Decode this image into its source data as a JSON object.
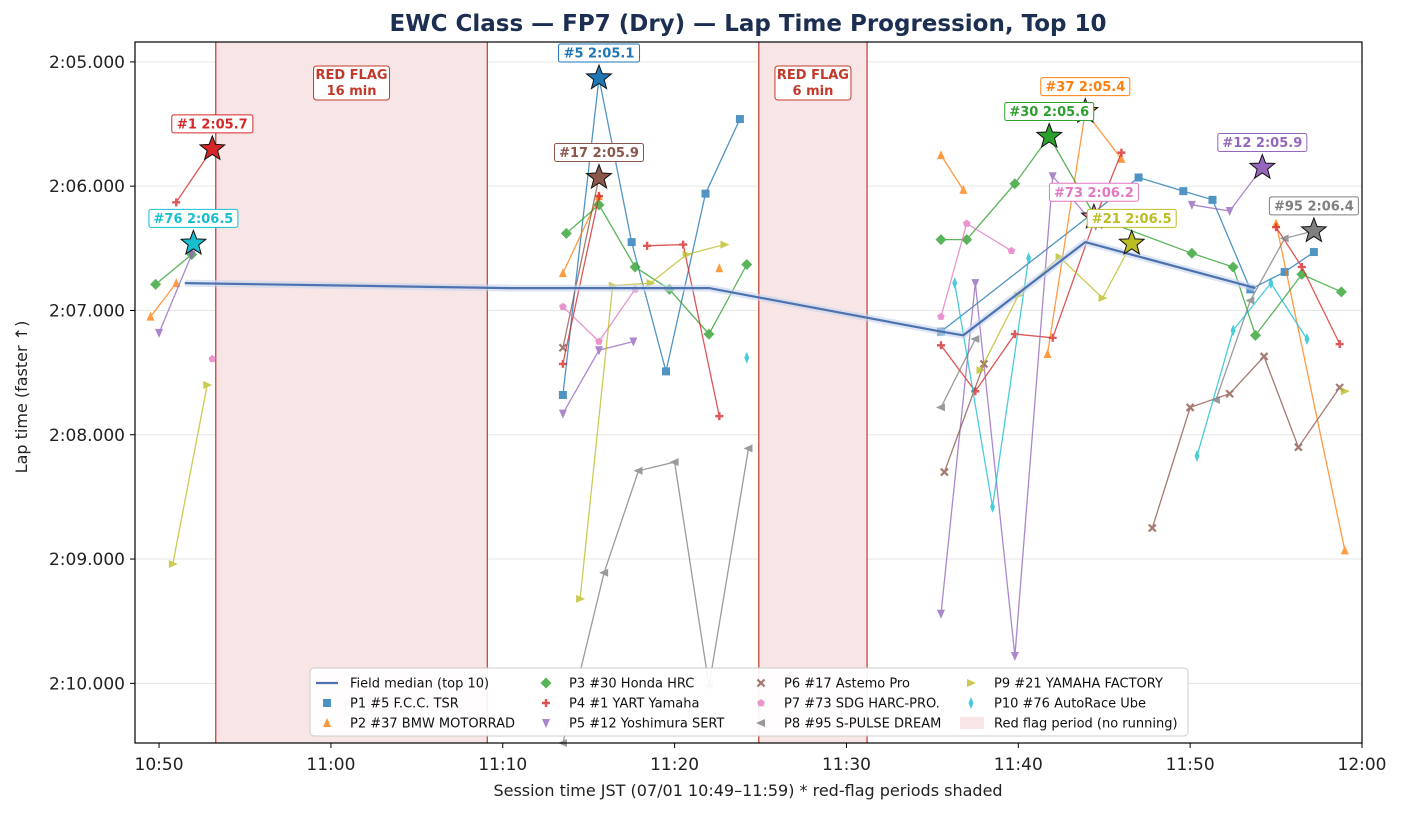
{
  "chart_data": {
    "type": "line",
    "title": "EWC Class — FP7 (Dry) — Lap Time Progression, Top 10",
    "xlabel": "Session time JST (07/01 10:49–11:59)   * red-flag periods shaded",
    "ylabel": "Lap time (faster ↑)",
    "xlim": [
      "10:48.6",
      "12:00"
    ],
    "ylim": [
      "2:04.840",
      "2:10.480"
    ],
    "y_inverted": true,
    "x_ticks": [
      "10:50",
      "11:00",
      "11:10",
      "11:20",
      "11:30",
      "11:40",
      "11:50",
      "12:00"
    ],
    "y_ticks": [
      "2:05.000",
      "2:06.000",
      "2:07.000",
      "2:08.000",
      "2:09.000",
      "2:10.000"
    ],
    "grid": "horizontal",
    "legend_position": "bottom-center",
    "red_flags": [
      {
        "label": "RED FLAG",
        "duration": "16 min",
        "start": "10:53.3",
        "end": "11:09.1"
      },
      {
        "label": "RED FLAG",
        "duration": "6 min",
        "start": "11:24.9",
        "end": "11:31.2"
      }
    ],
    "red_flag_legend": "Red flag period (no running)",
    "median": {
      "name": "Field median (top 10)",
      "color": "#4c72b0",
      "points": [
        [
          "10:51.5",
          "2:06.78"
        ],
        [
          "11:10.4",
          "2:06.82"
        ],
        [
          "11:22.0",
          "2:06.82"
        ],
        [
          "11:35.5",
          "2:07.17"
        ],
        [
          "11:36.8",
          "2:07.20"
        ],
        [
          "11:43.9",
          "2:06.45"
        ],
        [
          "11:53.8",
          "2:06.82"
        ]
      ]
    },
    "series": [
      {
        "name": "P1 #5 F.C.C. TSR",
        "color": "#1f77b4",
        "marker": "square",
        "segments": [
          [
            [
              "11:13.5",
              "2:07.68"
            ],
            [
              "11:15.6",
              "2:05.13"
            ],
            [
              "11:17.5",
              "2:06.45"
            ],
            [
              "11:19.5",
              "2:07.49"
            ],
            [
              "11:21.8",
              "2:06.06"
            ],
            [
              "11:23.8",
              "2:05.46"
            ]
          ],
          [
            [
              "11:35.5",
              "2:07.17"
            ],
            [
              "11:47.0",
              "2:05.93"
            ],
            [
              "11:49.6",
              "2:06.04"
            ],
            [
              "11:51.3",
              "2:06.11"
            ],
            [
              "11:53.5",
              "2:06.83"
            ],
            [
              "11:55.5",
              "2:06.69"
            ],
            [
              "11:57.2",
              "2:06.53"
            ]
          ]
        ]
      },
      {
        "name": "P2 #37 BMW MOTORRAD",
        "color": "#ff7f0e",
        "marker": "triangle-up",
        "segments": [
          [
            [
              "10:49.5",
              "2:07.05"
            ],
            [
              "10:51.0",
              "2:06.78"
            ]
          ],
          [
            [
              "11:13.5",
              "2:06.70"
            ],
            [
              "11:15.6",
              "2:06.08"
            ]
          ],
          [
            [
              "11:22.6",
              "2:06.66"
            ]
          ],
          [
            [
              "11:35.5",
              "2:05.75"
            ],
            [
              "11:36.8",
              "2:06.03"
            ]
          ],
          [
            [
              "11:41.7",
              "2:07.35"
            ],
            [
              "11:43.9",
              "2:05.40"
            ],
            [
              "11:46.0",
              "2:05.78"
            ]
          ],
          [
            [
              "11:55.0",
              "2:06.30"
            ],
            [
              "11:59.0",
              "2:08.93"
            ]
          ]
        ]
      },
      {
        "name": "P3 #30 Honda HRC",
        "color": "#2ca02c",
        "marker": "diamond",
        "segments": [
          [
            [
              "10:49.8",
              "2:06.79"
            ],
            [
              "10:51.9",
              "2:06.55"
            ]
          ],
          [
            [
              "11:13.7",
              "2:06.38"
            ],
            [
              "11:15.6",
              "2:06.15"
            ],
            [
              "11:17.7",
              "2:06.65"
            ],
            [
              "11:19.7",
              "2:06.83"
            ],
            [
              "11:22.0",
              "2:07.19"
            ],
            [
              "11:24.2",
              "2:06.63"
            ]
          ],
          [
            [
              "11:35.5",
              "2:06.43"
            ],
            [
              "11:37.0",
              "2:06.43"
            ],
            [
              "11:39.8",
              "2:05.98"
            ],
            [
              "11:41.8",
              "2:05.60"
            ],
            [
              "11:44.5",
              "2:06.25"
            ],
            [
              "11:50.1",
              "2:06.54"
            ],
            [
              "11:52.5",
              "2:06.65"
            ],
            [
              "11:53.8",
              "2:07.20"
            ],
            [
              "11:56.5",
              "2:06.71"
            ],
            [
              "11:58.8",
              "2:06.85"
            ]
          ]
        ]
      },
      {
        "name": "P4 #1 YART Yamaha",
        "color": "#d62728",
        "marker": "plus",
        "segments": [
          [
            [
              "10:51.0",
              "2:06.13"
            ],
            [
              "10:53.1",
              "2:05.70"
            ]
          ],
          [
            [
              "11:13.5",
              "2:07.43"
            ],
            [
              "11:15.6",
              "2:06.08"
            ]
          ],
          [
            [
              "11:18.4",
              "2:06.48"
            ],
            [
              "11:20.5",
              "2:06.47"
            ],
            [
              "11:22.6",
              "2:07.85"
            ]
          ],
          [
            [
              "11:35.5",
              "2:07.28"
            ],
            [
              "11:37.5",
              "2:07.65"
            ],
            [
              "11:39.8",
              "2:07.19"
            ],
            [
              "11:42.0",
              "2:07.22"
            ],
            [
              "11:44.5",
              "2:06.25"
            ],
            [
              "11:46.0",
              "2:05.73"
            ]
          ],
          [
            [
              "11:55.0",
              "2:06.33"
            ],
            [
              "11:56.5",
              "2:06.65"
            ],
            [
              "11:58.7",
              "2:07.27"
            ]
          ]
        ]
      },
      {
        "name": "P5 #12 Yoshimura SERT",
        "color": "#9467bd",
        "marker": "triangle-down",
        "segments": [
          [
            [
              "10:50.0",
              "2:07.18"
            ],
            [
              "10:51.9",
              "2:06.55"
            ]
          ],
          [
            [
              "11:13.5",
              "2:07.83"
            ],
            [
              "11:15.6",
              "2:07.32"
            ],
            [
              "11:17.6",
              "2:07.25"
            ]
          ],
          [
            [
              "11:35.5",
              "2:09.44"
            ],
            [
              "11:37.5",
              "2:06.78"
            ],
            [
              "11:39.8",
              "2:09.78"
            ],
            [
              "11:42.0",
              "2:05.92"
            ],
            [
              "11:44.5",
              "2:06.32"
            ]
          ],
          [
            [
              "11:50.1",
              "2:06.15"
            ],
            [
              "11:52.3",
              "2:06.20"
            ],
            [
              "11:54.2",
              "2:05.85"
            ]
          ]
        ]
      },
      {
        "name": "P6 #17 Astemo Pro",
        "color": "#8c564b",
        "marker": "x",
        "segments": [
          [
            [
              "11:13.5",
              "2:07.30"
            ],
            [
              "11:15.6",
              "2:05.93"
            ]
          ],
          [
            [
              "11:35.7",
              "2:08.30"
            ],
            [
              "11:38.0",
              "2:07.43"
            ]
          ],
          [
            [
              "11:47.8",
              "2:08.75"
            ],
            [
              "11:50.0",
              "2:07.78"
            ],
            [
              "11:52.3",
              "2:07.67"
            ],
            [
              "11:54.3",
              "2:07.37"
            ],
            [
              "11:56.3",
              "2:08.10"
            ],
            [
              "11:58.7",
              "2:07.62"
            ]
          ]
        ]
      },
      {
        "name": "P7 #73 SDG HARC-PRO.",
        "color": "#e377c2",
        "marker": "pentagon",
        "segments": [
          [
            [
              "10:53.1",
              "2:07.39"
            ]
          ],
          [
            [
              "11:13.5",
              "2:06.97"
            ],
            [
              "11:15.6",
              "2:07.25"
            ],
            [
              "11:17.7",
              "2:06.83"
            ]
          ],
          [
            [
              "11:35.5",
              "2:07.05"
            ],
            [
              "11:37.0",
              "2:06.30"
            ],
            [
              "11:39.6",
              "2:06.52"
            ]
          ],
          [
            [
              "11:44.4",
              "2:06.25"
            ]
          ]
        ]
      },
      {
        "name": "P8 #95 S-PULSE DREAM",
        "color": "#7f7f7f",
        "marker": "triangle-left",
        "segments": [
          [
            [
              "11:13.5",
              "2:10.48"
            ],
            [
              "11:15.9",
              "2:09.11"
            ],
            [
              "11:17.9",
              "2:08.29"
            ],
            [
              "11:20.0",
              "2:08.22"
            ],
            [
              "11:22.0",
              "2:10.02"
            ],
            [
              "11:24.3",
              "2:08.11"
            ]
          ],
          [
            [
              "11:35.5",
              "2:07.78"
            ],
            [
              "11:37.5",
              "2:07.23"
            ]
          ],
          [
            [
              "11:51.5",
              "2:07.72"
            ],
            [
              "11:53.5",
              "2:06.92"
            ],
            [
              "11:55.5",
              "2:06.42"
            ],
            [
              "11:57.2",
              "2:06.36"
            ]
          ]
        ]
      },
      {
        "name": "P9 #21 YAMAHA FACTORY",
        "color": "#bcbd22",
        "marker": "triangle-right",
        "segments": [
          [
            [
              "10:50.8",
              "2:09.04"
            ],
            [
              "10:52.8",
              "2:07.60"
            ]
          ],
          [
            [
              "11:14.5",
              "2:09.32"
            ],
            [
              "11:16.4",
              "2:06.80"
            ],
            [
              "11:18.6",
              "2:06.78"
            ],
            [
              "11:20.7",
              "2:06.55"
            ],
            [
              "11:22.9",
              "2:06.47"
            ]
          ],
          [
            [
              "11:37.8",
              "2:07.48"
            ],
            [
              "11:40.0",
              "2:06.88"
            ],
            [
              "11:42.4",
              "2:06.57"
            ],
            [
              "11:44.9",
              "2:06.90"
            ],
            [
              "11:46.6",
              "2:06.46"
            ]
          ],
          [
            [
              "11:59.0",
              "2:07.65"
            ]
          ]
        ]
      },
      {
        "name": "P10 #76 AutoRace Ube",
        "color": "#17becf",
        "marker": "diamond-thin",
        "segments": [
          [
            [
              "10:52.0",
              "2:06.46"
            ]
          ],
          [
            [
              "11:24.2",
              "2:07.38"
            ]
          ],
          [
            [
              "11:36.3",
              "2:06.78"
            ],
            [
              "11:38.5",
              "2:08.58"
            ],
            [
              "11:40.6",
              "2:06.58"
            ]
          ],
          [
            [
              "11:50.4",
              "2:08.17"
            ],
            [
              "11:52.5",
              "2:07.16"
            ],
            [
              "11:54.7",
              "2:06.78"
            ],
            [
              "11:56.8",
              "2:07.23"
            ]
          ]
        ]
      }
    ],
    "best_laps": [
      {
        "label": "#1 2:05.7",
        "x": "10:53.1",
        "y": "2:05.70",
        "color": "#d62728"
      },
      {
        "label": "#76 2:06.5",
        "x": "10:52.0",
        "y": "2:06.46",
        "color": "#17becf"
      },
      {
        "label": "#5 2:05.1",
        "x": "11:15.6",
        "y": "2:05.13",
        "color": "#1f77b4"
      },
      {
        "label": "#17 2:05.9",
        "x": "11:15.6",
        "y": "2:05.93",
        "color": "#8c564b"
      },
      {
        "label": "#37 2:05.4",
        "x": "11:43.9",
        "y": "2:05.40",
        "color": "#ff7f0e"
      },
      {
        "label": "#30 2:05.6",
        "x": "11:41.8",
        "y": "2:05.60",
        "color": "#2ca02c"
      },
      {
        "label": "#73 2:06.2",
        "x": "11:44.4",
        "y": "2:06.25",
        "color": "#e377c2"
      },
      {
        "label": "#21 2:06.5",
        "x": "11:46.6",
        "y": "2:06.46",
        "color": "#bcbd22"
      },
      {
        "label": "#12 2:05.9",
        "x": "11:54.2",
        "y": "2:05.85",
        "color": "#9467bd"
      },
      {
        "label": "#95 2:06.4",
        "x": "11:57.2",
        "y": "2:06.36",
        "color": "#7f7f7f"
      }
    ]
  }
}
